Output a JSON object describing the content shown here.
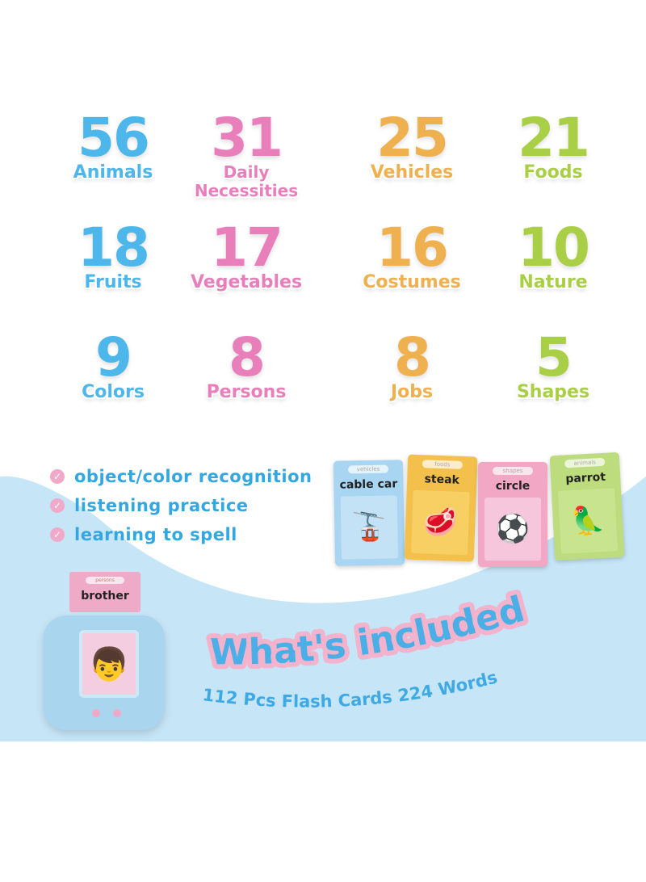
{
  "stats": [
    {
      "number": "56",
      "label": "Animals",
      "color": "blue"
    },
    {
      "number": "31",
      "label": "Daily Necessities",
      "color": "pink"
    },
    {
      "number": "25",
      "label": "Vehicles",
      "color": "orange"
    },
    {
      "number": "21",
      "label": "Foods",
      "color": "green"
    },
    {
      "number": "18",
      "label": "Fruits",
      "color": "blue"
    },
    {
      "number": "17",
      "label": "Vegetables",
      "color": "pink"
    },
    {
      "number": "16",
      "label": "Costumes",
      "color": "orange"
    },
    {
      "number": "10",
      "label": "Nature",
      "color": "green"
    },
    {
      "number": "9",
      "label": "Colors",
      "color": "blue"
    },
    {
      "number": "8",
      "label": "Persons",
      "color": "pink"
    },
    {
      "number": "8",
      "label": "Jobs",
      "color": "orange"
    },
    {
      "number": "5",
      "label": "Shapes",
      "color": "green"
    }
  ],
  "benefits": [
    "object/color recognition",
    "listening practice",
    "learning to spell"
  ],
  "cards": [
    {
      "category": "vehicles",
      "word": "cable car",
      "icon": "cable-car-icon"
    },
    {
      "category": "foods",
      "word": "steak",
      "icon": "steak-icon"
    },
    {
      "category": "shapes",
      "word": "circle",
      "icon": "soccer-ball-icon"
    },
    {
      "category": "animals",
      "word": "parrot",
      "icon": "parrot-icon"
    }
  ],
  "device": {
    "card_category": "persons",
    "card_word": "brother"
  },
  "headline": "What's included",
  "subheadline": "112 Pcs Flash Cards 224 Words",
  "colors": {
    "blue": "#4db6ea",
    "pink": "#e97fba",
    "orange": "#efb04f",
    "green": "#a9cf47",
    "background_blue": "#c6e6f8"
  }
}
